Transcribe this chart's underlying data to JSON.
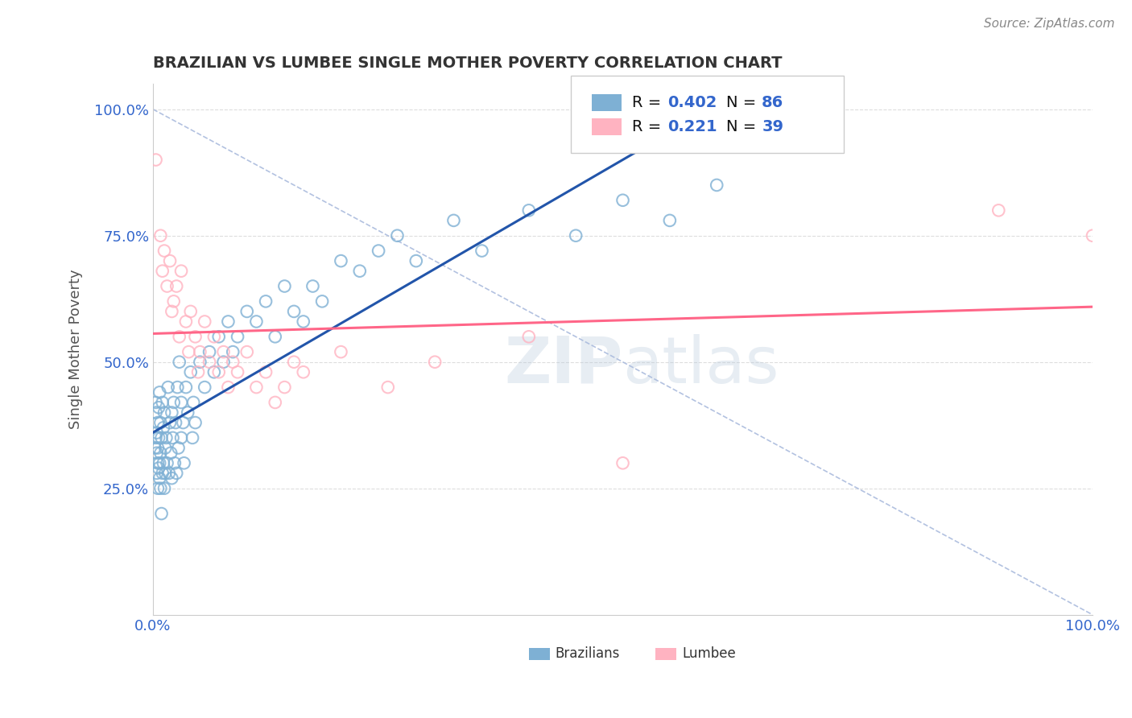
{
  "title": "BRAZILIAN VS LUMBEE SINGLE MOTHER POVERTY CORRELATION CHART",
  "source_text": "Source: ZipAtlas.com",
  "ylabel": "Single Mother Poverty",
  "xlim": [
    0,
    1
  ],
  "ylim": [
    0,
    1.05
  ],
  "xtick_labels": [
    "0.0%",
    "100.0%"
  ],
  "ytick_labels": [
    "25.0%",
    "50.0%",
    "75.0%",
    "100.0%"
  ],
  "ytick_values": [
    0.25,
    0.5,
    0.75,
    1.0
  ],
  "legend_v1": "0.402",
  "legend_n1v": "86",
  "legend_v2": "0.221",
  "legend_n2v": "39",
  "blue_color": "#7EB0D4",
  "pink_color": "#FFB3C1",
  "blue_line_color": "#2255AA",
  "pink_line_color": "#FF6688",
  "ref_line_color": "#AABBDD",
  "watermark_color": "#BBCCDD",
  "title_color": "#333333",
  "axis_label_color": "#555555",
  "tick_color": "#3366CC",
  "legend_val_color": "#3366CC",
  "background_color": "#FFFFFF",
  "grid_color": "#DDDDDD",
  "brazilian_x": [
    0.002,
    0.003,
    0.003,
    0.003,
    0.004,
    0.004,
    0.004,
    0.005,
    0.005,
    0.005,
    0.005,
    0.006,
    0.006,
    0.006,
    0.007,
    0.007,
    0.007,
    0.008,
    0.008,
    0.008,
    0.009,
    0.009,
    0.01,
    0.01,
    0.011,
    0.011,
    0.012,
    0.012,
    0.013,
    0.013,
    0.014,
    0.015,
    0.016,
    0.017,
    0.018,
    0.019,
    0.02,
    0.02,
    0.021,
    0.022,
    0.023,
    0.024,
    0.025,
    0.026,
    0.027,
    0.028,
    0.03,
    0.03,
    0.032,
    0.033,
    0.035,
    0.037,
    0.04,
    0.042,
    0.043,
    0.045,
    0.05,
    0.055,
    0.06,
    0.065,
    0.07,
    0.075,
    0.08,
    0.085,
    0.09,
    0.1,
    0.11,
    0.12,
    0.13,
    0.14,
    0.15,
    0.16,
    0.17,
    0.18,
    0.2,
    0.22,
    0.24,
    0.26,
    0.28,
    0.32,
    0.35,
    0.4,
    0.45,
    0.5,
    0.55,
    0.6
  ],
  "brazilian_y": [
    0.33,
    0.4,
    0.35,
    0.42,
    0.28,
    0.36,
    0.32,
    0.3,
    0.38,
    0.25,
    0.33,
    0.29,
    0.41,
    0.35,
    0.27,
    0.44,
    0.3,
    0.38,
    0.25,
    0.32,
    0.2,
    0.35,
    0.42,
    0.28,
    0.3,
    0.37,
    0.25,
    0.4,
    0.33,
    0.28,
    0.35,
    0.3,
    0.45,
    0.28,
    0.38,
    0.32,
    0.4,
    0.27,
    0.35,
    0.42,
    0.3,
    0.38,
    0.28,
    0.45,
    0.33,
    0.5,
    0.35,
    0.42,
    0.38,
    0.3,
    0.45,
    0.4,
    0.48,
    0.35,
    0.42,
    0.38,
    0.5,
    0.45,
    0.52,
    0.48,
    0.55,
    0.5,
    0.58,
    0.52,
    0.55,
    0.6,
    0.58,
    0.62,
    0.55,
    0.65,
    0.6,
    0.58,
    0.65,
    0.62,
    0.7,
    0.68,
    0.72,
    0.75,
    0.7,
    0.78,
    0.72,
    0.8,
    0.75,
    0.82,
    0.78,
    0.85
  ],
  "lumbee_x": [
    0.003,
    0.008,
    0.01,
    0.012,
    0.015,
    0.018,
    0.02,
    0.022,
    0.025,
    0.028,
    0.03,
    0.035,
    0.038,
    0.04,
    0.045,
    0.048,
    0.05,
    0.055,
    0.06,
    0.065,
    0.07,
    0.075,
    0.08,
    0.085,
    0.09,
    0.1,
    0.11,
    0.12,
    0.13,
    0.14,
    0.15,
    0.16,
    0.2,
    0.25,
    0.3,
    0.4,
    0.5,
    0.9,
    1.0
  ],
  "lumbee_y": [
    0.9,
    0.75,
    0.68,
    0.72,
    0.65,
    0.7,
    0.6,
    0.62,
    0.65,
    0.55,
    0.68,
    0.58,
    0.52,
    0.6,
    0.55,
    0.48,
    0.52,
    0.58,
    0.5,
    0.55,
    0.48,
    0.52,
    0.45,
    0.5,
    0.48,
    0.52,
    0.45,
    0.48,
    0.42,
    0.45,
    0.5,
    0.48,
    0.52,
    0.45,
    0.5,
    0.55,
    0.3,
    0.8,
    0.75
  ]
}
